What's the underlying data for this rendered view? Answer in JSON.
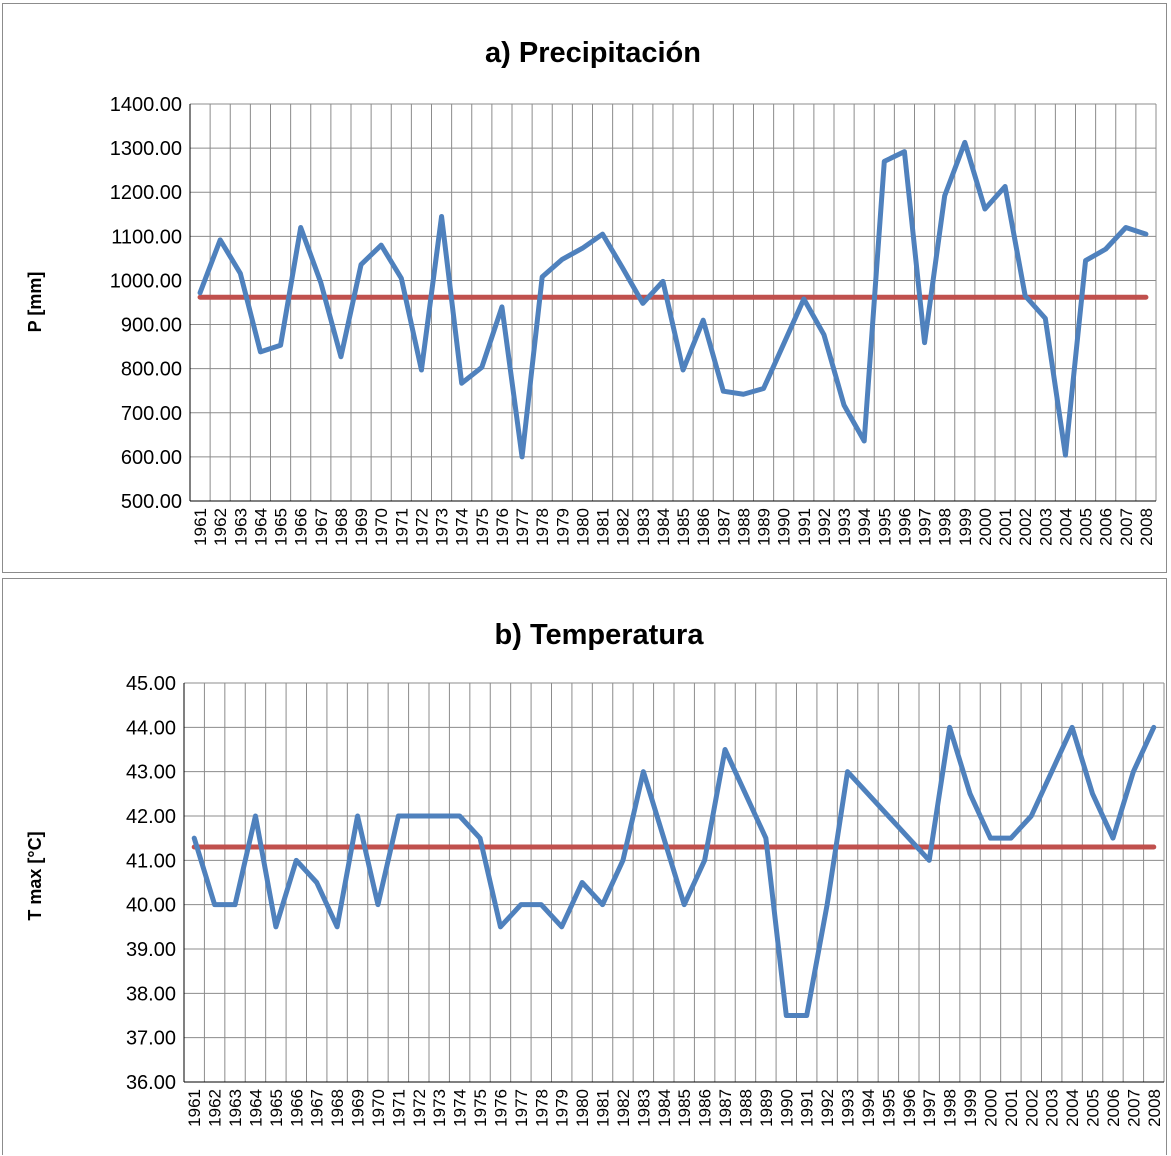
{
  "colors": {
    "series": "#4f81bd",
    "mean": "#c0504d",
    "grid": "#8c8c8c",
    "axis": "#000000"
  },
  "chart_data": [
    {
      "type": "line",
      "title": "a) Precipitación",
      "xlabel": "",
      "ylabel": "P [mm]",
      "ylim": [
        500,
        1400
      ],
      "ytick_step": 100,
      "grid": true,
      "categories": [
        "1961",
        "1962",
        "1963",
        "1964",
        "1965",
        "1966",
        "1967",
        "1968",
        "1969",
        "1970",
        "1971",
        "1972",
        "1973",
        "1974",
        "1975",
        "1976",
        "1977",
        "1978",
        "1979",
        "1980",
        "1981",
        "1982",
        "1983",
        "1984",
        "1985",
        "1986",
        "1987",
        "1988",
        "1989",
        "1990",
        "1991",
        "1992",
        "1993",
        "1994",
        "1995",
        "1996",
        "1997",
        "1998",
        "1999",
        "2000",
        "2001",
        "2002",
        "2003",
        "2004",
        "2005",
        "2006",
        "2007",
        "2008"
      ],
      "series": [
        {
          "values": [
            972,
            1092,
            1016,
            838,
            853,
            1120,
            995,
            827,
            1036,
            1080,
            1005,
            797,
            1145,
            767,
            803,
            940,
            600,
            1008,
            1048,
            1073,
            1105,
            1028,
            948,
            998,
            797,
            910,
            749,
            742,
            755,
            856,
            958,
            877,
            717,
            636,
            1270,
            1292,
            859,
            1192,
            1313,
            1162,
            1213,
            965,
            914,
            604,
            1045,
            1071,
            1120,
            1105
          ]
        },
        {
          "values": [
            962,
            962,
            962,
            962,
            962,
            962,
            962,
            962,
            962,
            962,
            962,
            962,
            962,
            962,
            962,
            962,
            962,
            962,
            962,
            962,
            962,
            962,
            962,
            962,
            962,
            962,
            962,
            962,
            962,
            962,
            962,
            962,
            962,
            962,
            962,
            962,
            962,
            962,
            962,
            962,
            962,
            962,
            962,
            962,
            962,
            962,
            962,
            962
          ]
        }
      ]
    },
    {
      "type": "line",
      "title": "b) Temperatura",
      "xlabel": "",
      "ylabel": "T max [°C]",
      "ylim": [
        36,
        45
      ],
      "ytick_step": 1,
      "grid": true,
      "categories": [
        "1961",
        "1962",
        "1963",
        "1964",
        "1965",
        "1966",
        "1967",
        "1968",
        "1969",
        "1970",
        "1971",
        "1972",
        "1973",
        "1974",
        "1975",
        "1976",
        "1977",
        "1978",
        "1979",
        "1980",
        "1981",
        "1982",
        "1983",
        "1984",
        "1985",
        "1986",
        "1987",
        "1988",
        "1989",
        "1990",
        "1991",
        "1992",
        "1993",
        "1994",
        "1995",
        "1996",
        "1997",
        "1998",
        "1999",
        "2000",
        "2001",
        "2002",
        "2003",
        "2004",
        "2005",
        "2006",
        "2007",
        "2008"
      ],
      "series": [
        {
          "values": [
            41.5,
            40,
            40,
            42,
            39.5,
            41,
            40.5,
            39.5,
            42,
            40,
            42,
            42,
            42,
            42,
            41.5,
            39.5,
            40,
            40,
            39.5,
            40.5,
            40,
            41,
            43,
            41.5,
            40,
            41,
            43.5,
            42.5,
            41.5,
            37.5,
            37.5,
            40,
            43,
            42.5,
            42,
            41.5,
            41,
            44,
            42.5,
            41.5,
            41.5,
            42,
            43,
            44,
            42.5,
            41.5,
            43,
            44
          ]
        },
        {
          "values": [
            41.3,
            41.3,
            41.3,
            41.3,
            41.3,
            41.3,
            41.3,
            41.3,
            41.3,
            41.3,
            41.3,
            41.3,
            41.3,
            41.3,
            41.3,
            41.3,
            41.3,
            41.3,
            41.3,
            41.3,
            41.3,
            41.3,
            41.3,
            41.3,
            41.3,
            41.3,
            41.3,
            41.3,
            41.3,
            41.3,
            41.3,
            41.3,
            41.3,
            41.3,
            41.3,
            41.3,
            41.3,
            41.3,
            41.3,
            41.3,
            41.3,
            41.3,
            41.3,
            41.3,
            41.3,
            41.3,
            41.3,
            41.3
          ]
        }
      ]
    }
  ]
}
